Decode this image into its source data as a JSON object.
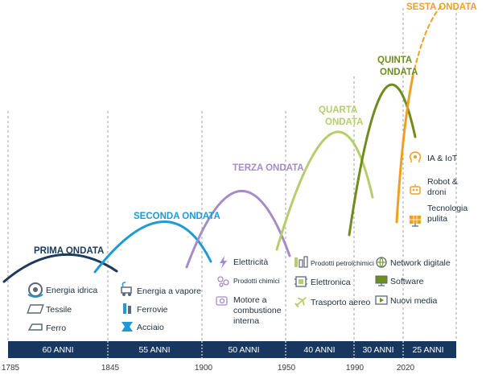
{
  "waves": [
    {
      "label": "PRIMA ONDATA",
      "color": "#1b3a5c"
    },
    {
      "label": "SECONDA ONDATA",
      "color": "#1e9ad6"
    },
    {
      "label": "TERZA ONDATA",
      "color": "#a58bc8"
    },
    {
      "label1": "QUARTA",
      "label2": "ONDATA",
      "color": "#b6cd6e"
    },
    {
      "label1": "QUINTA",
      "label2": "ONDATA",
      "color": "#6f8c1e"
    },
    {
      "label": "SESTA ONDATA",
      "color": "#f0a020"
    }
  ],
  "items": {
    "w1": [
      "Energia idrica",
      "Tessile",
      "Ferro"
    ],
    "w2": [
      "Energia a vapore",
      "Ferrovie",
      "Acciaio"
    ],
    "w3": [
      "Elettricità",
      "Prodotti chimici",
      "Motore a",
      "combustione",
      "interna"
    ],
    "w4": [
      "Prodotti petrolchimici",
      "Elettronica",
      "Trasporto aereo"
    ],
    "w5": [
      "Network digitale",
      "Software",
      "Nuovi media"
    ],
    "w6": [
      "IA & IoT",
      "Robot &",
      "droni",
      "Tecnologia",
      "pulita"
    ]
  },
  "durations": [
    "60 ANNI",
    "55 ANNI",
    "50 ANNI",
    "40 ANNI",
    "30 ANNI",
    "25 ANNI"
  ],
  "years": [
    "1785",
    "1845",
    "1900",
    "1950",
    "1990",
    "2020"
  ],
  "colors": {
    "bar": "#17375e",
    "icon": "#5a6878",
    "divider": "#9a9a9a"
  }
}
